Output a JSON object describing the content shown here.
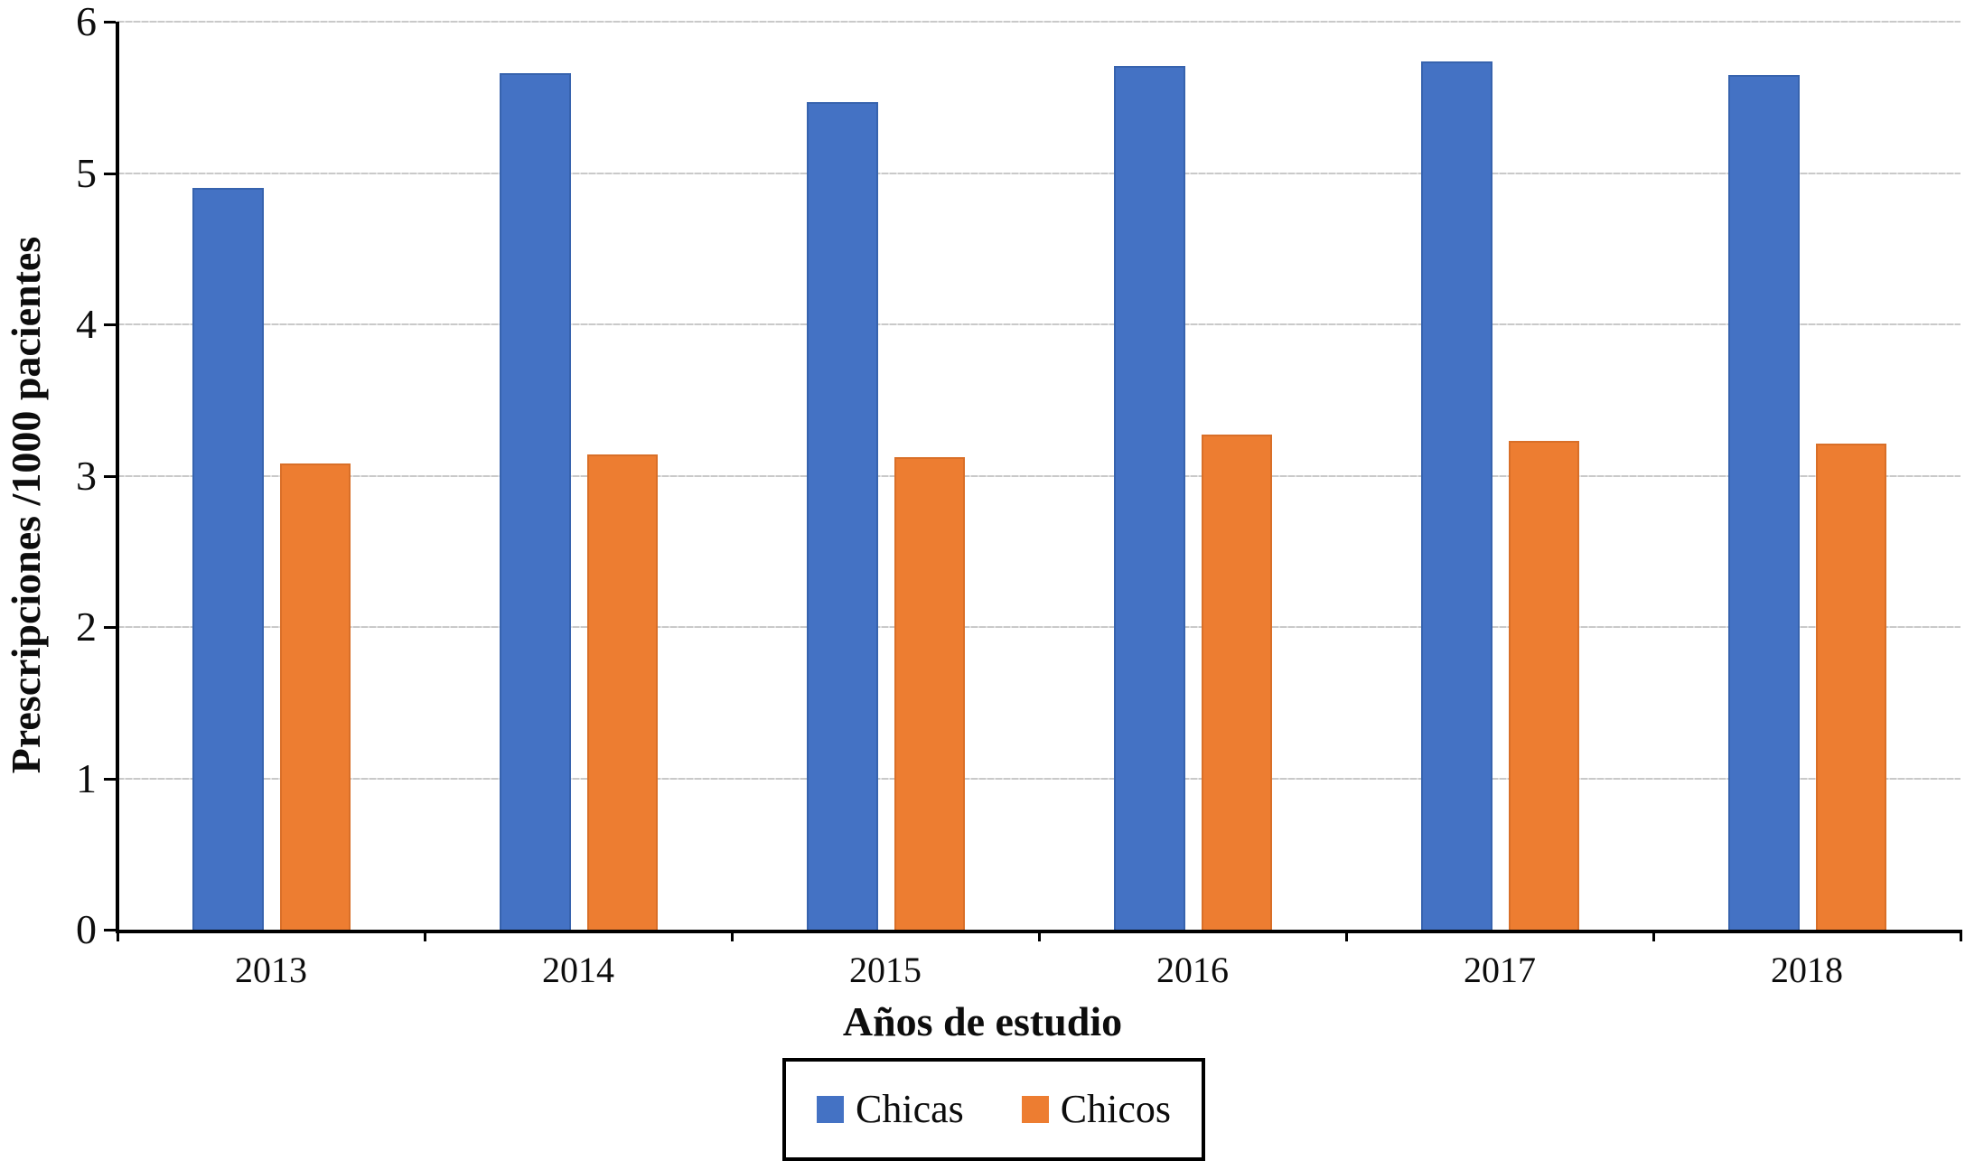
{
  "chart_data": {
    "type": "bar",
    "title": "",
    "categories": [
      "2013",
      "2014",
      "2015",
      "2016",
      "2017",
      "2018"
    ],
    "series": [
      {
        "name": "Chicas",
        "color": "#4472C4",
        "border_color": "#3763AE",
        "values": [
          4.9,
          5.66,
          5.47,
          5.71,
          5.74,
          5.65
        ]
      },
      {
        "name": "Chicos",
        "color": "#ED7D31",
        "border_color": "#D96F28",
        "values": [
          3.08,
          3.14,
          3.12,
          3.27,
          3.23,
          3.21
        ]
      }
    ],
    "xlabel": "Años de estudio",
    "ylabel": "Prescripciones /1000 pacientes",
    "ylim": [
      0,
      6
    ],
    "yticks": [
      "0",
      "1",
      "2",
      "3",
      "4",
      "5",
      "6"
    ],
    "grid": true,
    "gridline_color": "#c9c9c9",
    "axis_color": "#000000",
    "legend_position": "bottom-center",
    "legend_border_color": "#000000"
  }
}
